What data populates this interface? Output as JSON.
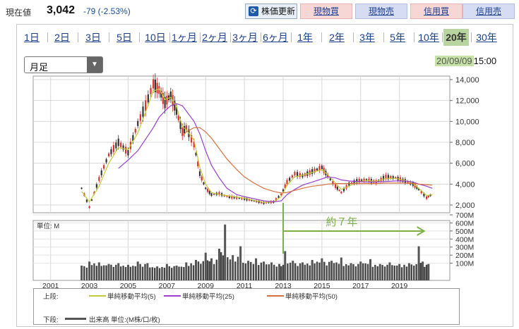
{
  "header": {
    "price_label": "現在値",
    "price_value": "3,042",
    "price_change": "-79 (-2.53%)",
    "refresh_label": "株価更新",
    "buttons": [
      "現物買",
      "現物売",
      "信用買",
      "信用売"
    ]
  },
  "periods": [
    "1日",
    "2日",
    "3日",
    "5日",
    "10日",
    "1ヶ月",
    "2ヶ月",
    "3ヶ月",
    "6ヶ月",
    "1年",
    "2年",
    "3年",
    "5年",
    "10年",
    "20年",
    "30年"
  ],
  "active_period": "20年",
  "select": {
    "value": "月足",
    "arrow": "▼"
  },
  "timestamp": {
    "date": "20/09/09",
    "time": "15:00"
  },
  "colors": {
    "ma5": "#c5c93a",
    "ma25": "#9a3fce",
    "ma50": "#d5713f",
    "up": "#d8322b",
    "down": "#333333",
    "annotation": "#7cb342"
  },
  "chart_data": [
    {
      "type": "line",
      "subtitle": "price",
      "y_ticks": [
        "14,000",
        "12,000",
        "10,000",
        "8,000",
        "6,000",
        "4,000",
        "2,000"
      ],
      "x_ticks": [
        "2001",
        "2003",
        "2005",
        "2007",
        "2009",
        "2011",
        "2013",
        "2015",
        "2017",
        "2019"
      ],
      "ylim": [
        1000,
        14500
      ],
      "x": [
        2002.6,
        2003.0,
        2003.5,
        2004.0,
        2004.5,
        2005.0,
        2005.5,
        2005.9,
        2006.3,
        2006.6,
        2006.9,
        2007.2,
        2007.5,
        2007.8,
        2008.0,
        2008.4,
        2008.7,
        2009.0,
        2009.3,
        2009.7,
        2010.1,
        2010.6,
        2011.0,
        2011.5,
        2012.0,
        2012.5,
        2012.9,
        2013.2,
        2013.6,
        2014.0,
        2014.5,
        2015.0,
        2015.3,
        2015.7,
        2016.0,
        2016.4,
        2016.8,
        2017.3,
        2017.8,
        2018.3,
        2018.8,
        2019.3,
        2019.7,
        2020.0,
        2020.4,
        2020.7
      ],
      "series": [
        {
          "name": "price",
          "values": [
            3600,
            1800,
            4500,
            6800,
            8000,
            7000,
            9800,
            11500,
            13600,
            13000,
            11800,
            12500,
            11000,
            9000,
            9400,
            7800,
            5000,
            3600,
            3000,
            3100,
            2800,
            2700,
            2600,
            2400,
            2200,
            2300,
            3000,
            4200,
            5000,
            4800,
            5200,
            5600,
            4800,
            3800,
            3200,
            4000,
            4300,
            4400,
            4200,
            4700,
            4600,
            4300,
            4000,
            3500,
            2700,
            3050
          ]
        },
        {
          "name": "単純移動平均(5)",
          "values": [
            3300,
            2300,
            3800,
            6000,
            7500,
            7300,
            8900,
            10900,
            12900,
            13100,
            12100,
            12300,
            11400,
            9500,
            9200,
            8200,
            5600,
            4000,
            3200,
            3000,
            2900,
            2750,
            2650,
            2450,
            2250,
            2300,
            2800,
            3900,
            4700,
            4850,
            5100,
            5400,
            4900,
            4100,
            3500,
            3800,
            4200,
            4350,
            4250,
            4550,
            4550,
            4350,
            4050,
            3600,
            2900,
            3000
          ]
        },
        {
          "name": "単純移動平均(25)",
          "values": [
            null,
            null,
            null,
            null,
            5500,
            6300,
            7200,
            8300,
            9400,
            10400,
            11000,
            11500,
            11700,
            11500,
            11000,
            10000,
            8800,
            7200,
            5800,
            4600,
            3600,
            3000,
            2800,
            2600,
            2400,
            2300,
            2400,
            3000,
            3500,
            3900,
            4200,
            4500,
            4700,
            4600,
            4400,
            4300,
            4250,
            4200,
            4200,
            4250,
            4300,
            4300,
            4200,
            4000,
            3800,
            3600
          ]
        },
        {
          "name": "単純移動平均(50)",
          "values": [
            null,
            null,
            null,
            null,
            null,
            null,
            null,
            null,
            null,
            null,
            null,
            null,
            null,
            8600,
            9000,
            9400,
            9400,
            9000,
            8400,
            7400,
            6400,
            5400,
            4700,
            4100,
            3600,
            3300,
            3150,
            3200,
            3400,
            3600,
            3800,
            3900,
            4000,
            4050,
            4050,
            4050,
            4050,
            4050,
            4050,
            4100,
            4100,
            4100,
            4050,
            4000,
            3950,
            3900
          ]
        }
      ]
    },
    {
      "type": "bar",
      "subtitle": "volume",
      "y_ticks": [
        "700M",
        "600M",
        "500M",
        "400M",
        "300M",
        "200M",
        "100M"
      ],
      "ylim": [
        0,
        700
      ],
      "unit_label": "単位: M",
      "x": [
        2002.6,
        2003.0,
        2003.5,
        2004.0,
        2004.5,
        2005.0,
        2005.5,
        2006.0,
        2006.5,
        2007.0,
        2007.5,
        2008.0,
        2008.5,
        2009.0,
        2009.3,
        2009.7,
        2010.0,
        2010.4,
        2010.8,
        2011.2,
        2011.6,
        2012.0,
        2012.4,
        2012.8,
        2013.1,
        2013.5,
        2014.0,
        2014.5,
        2015.0,
        2015.5,
        2016.0,
        2016.5,
        2017.0,
        2017.5,
        2018.0,
        2018.5,
        2019.0,
        2019.5,
        2020.0,
        2020.2,
        2020.5
      ],
      "values": [
        70,
        120,
        110,
        90,
        100,
        80,
        120,
        100,
        60,
        90,
        70,
        110,
        140,
        230,
        160,
        280,
        580,
        200,
        310,
        130,
        160,
        120,
        110,
        90,
        250,
        130,
        110,
        140,
        160,
        130,
        170,
        100,
        120,
        150,
        90,
        110,
        90,
        100,
        310,
        120,
        90
      ],
      "annotation": "約７年"
    }
  ],
  "legend": {
    "top_label": "上段:",
    "bottom_label": "下段:",
    "items": [
      "単純移動平均(5)",
      "単純移動平均(25)",
      "単純移動平均(50)"
    ],
    "volume_label": "出来高 単位:(M株/口/枚)"
  }
}
